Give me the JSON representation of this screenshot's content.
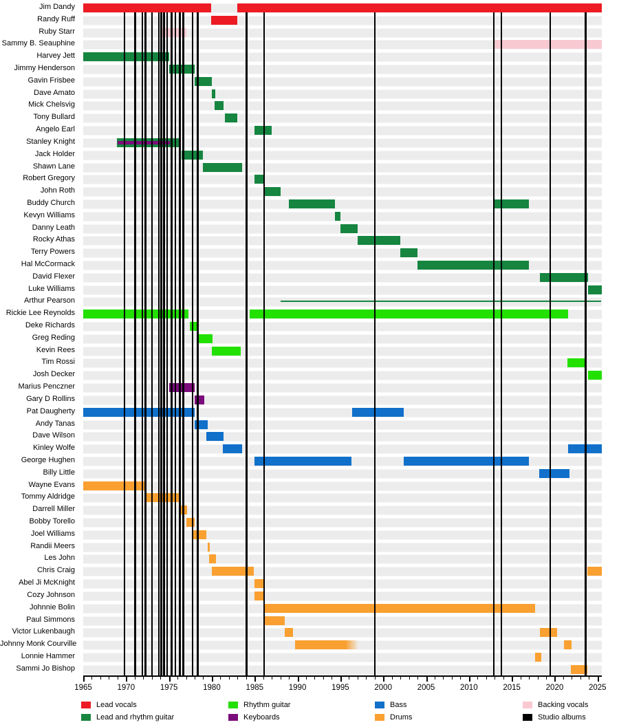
{
  "chart_data": {
    "type": "timeline",
    "title": "",
    "x_axis": {
      "min": 1965,
      "max": 2025.5,
      "major_ticks": [
        1965,
        1970,
        1975,
        1980,
        1985,
        1990,
        1995,
        2000,
        2005,
        2010,
        2015,
        2020,
        2025
      ],
      "minor_tick_interval": 1
    },
    "colors": {
      "lead_vocals": "#ed1c24",
      "lead_rhythm_guitar": "#168540",
      "rhythm_guitar": "#22e000",
      "keyboards": "#7b0c7b",
      "bass": "#1070ca",
      "drums": "#f9a031",
      "backing_vocals": "#f9c9d2",
      "albums": "#000000"
    },
    "album_lines": [
      1969.8,
      1971.05,
      1971.9,
      1972.25,
      1973.0,
      1973.8,
      1974.1,
      1974.4,
      1974.75,
      1975.3,
      1975.75,
      1976.25,
      1976.65,
      1977.75,
      1978.35,
      1984.05,
      1986.1,
      1999.0,
      2012.9,
      2013.75,
      2019.45,
      2023.6
    ],
    "members": [
      {
        "name": "Jim Dandy",
        "role": "lead_vocals",
        "bars": [
          {
            "s": 1965,
            "e": 1979.9
          },
          {
            "s": 1983,
            "e": 2025.5
          }
        ]
      },
      {
        "name": "Randy Ruff",
        "role": "lead_vocals",
        "bars": [
          {
            "s": 1979.9,
            "e": 1983
          }
        ]
      },
      {
        "name": "Ruby Starr",
        "role": "backing_vocals",
        "bars": [
          {
            "s": 1974,
            "e": 1977
          }
        ]
      },
      {
        "name": "Sammy B. Seauphine",
        "role": "backing_vocals",
        "bars": [
          {
            "s": 2013,
            "e": 2025.5
          }
        ]
      },
      {
        "name": "Harvey Jett",
        "role": "lead_rhythm_guitar",
        "bars": [
          {
            "s": 1965,
            "e": 1975
          }
        ]
      },
      {
        "name": "Jimmy Henderson",
        "role": "lead_rhythm_guitar",
        "bars": [
          {
            "s": 1975,
            "e": 1978
          }
        ]
      },
      {
        "name": "Gavin Frisbee",
        "role": "lead_rhythm_guitar",
        "bars": [
          {
            "s": 1978,
            "e": 1980
          }
        ]
      },
      {
        "name": "Dave Amato",
        "role": "lead_rhythm_guitar",
        "bars": [
          {
            "s": 1980,
            "e": 1980.4
          }
        ]
      },
      {
        "name": "Mick Chelsvig",
        "role": "lead_rhythm_guitar",
        "bars": [
          {
            "s": 1980.3,
            "e": 1981.4
          }
        ]
      },
      {
        "name": "Tony Bullard",
        "role": "lead_rhythm_guitar",
        "bars": [
          {
            "s": 1981.5,
            "e": 1983
          }
        ]
      },
      {
        "name": "Angelo Earl",
        "role": "lead_rhythm_guitar",
        "bars": [
          {
            "s": 1985,
            "e": 1987
          }
        ]
      },
      {
        "name": "Stanley Knight",
        "role": "lead_rhythm_guitar",
        "bars": [
          {
            "s": 1968.9,
            "e": 1976.4
          },
          {
            "s": 1969,
            "e": 1975.1,
            "role": "keyboards",
            "overlay": true
          }
        ]
      },
      {
        "name": "Jack Holder",
        "role": "lead_rhythm_guitar",
        "bars": [
          {
            "s": 1976.5,
            "e": 1979
          }
        ]
      },
      {
        "name": "Shawn Lane",
        "role": "lead_rhythm_guitar",
        "bars": [
          {
            "s": 1979,
            "e": 1983.5
          }
        ]
      },
      {
        "name": "Robert Gregory",
        "role": "lead_rhythm_guitar",
        "bars": [
          {
            "s": 1985,
            "e": 1986
          }
        ]
      },
      {
        "name": "John Roth",
        "role": "lead_rhythm_guitar",
        "bars": [
          {
            "s": 1986,
            "e": 1988
          }
        ]
      },
      {
        "name": "Buddy Church",
        "role": "lead_rhythm_guitar",
        "bars": [
          {
            "s": 1989,
            "e": 1994.4
          },
          {
            "s": 2013,
            "e": 2017
          }
        ]
      },
      {
        "name": "Kevyn Williams",
        "role": "lead_rhythm_guitar",
        "bars": [
          {
            "s": 1994.4,
            "e": 1995
          }
        ]
      },
      {
        "name": "Danny Leath",
        "role": "lead_rhythm_guitar",
        "bars": [
          {
            "s": 1995,
            "e": 1997
          }
        ]
      },
      {
        "name": "Rocky Athas",
        "role": "lead_rhythm_guitar",
        "bars": [
          {
            "s": 1997,
            "e": 2002
          }
        ]
      },
      {
        "name": "Terry Powers",
        "role": "lead_rhythm_guitar",
        "bars": [
          {
            "s": 2002,
            "e": 2004
          }
        ]
      },
      {
        "name": "Hal McCormack",
        "role": "lead_rhythm_guitar",
        "bars": [
          {
            "s": 2004,
            "e": 2017
          }
        ]
      },
      {
        "name": "David Flexer",
        "role": "lead_rhythm_guitar",
        "bars": [
          {
            "s": 2018.3,
            "e": 2023.9
          }
        ]
      },
      {
        "name": "Luke Williams",
        "role": "lead_rhythm_guitar",
        "bars": [
          {
            "s": 2023.9,
            "e": 2025.5
          }
        ]
      },
      {
        "name": "Arthur Pearson",
        "role": "lead_rhythm_guitar",
        "bars": [
          {
            "s": 1988,
            "e": 2025.4,
            "thin": true
          }
        ]
      },
      {
        "name": "Rickie Lee Reynolds",
        "role": "rhythm_guitar",
        "bars": [
          {
            "s": 1965,
            "e": 1977.3
          },
          {
            "s": 1984.4,
            "e": 2021.6
          }
        ]
      },
      {
        "name": "Deke Richards",
        "role": "rhythm_guitar",
        "bars": [
          {
            "s": 1977.4,
            "e": 1978.5
          }
        ]
      },
      {
        "name": "Greg Reding",
        "role": "rhythm_guitar",
        "bars": [
          {
            "s": 1978.4,
            "e": 1980.1
          }
        ]
      },
      {
        "name": "Kevin Rees",
        "role": "rhythm_guitar",
        "bars": [
          {
            "s": 1980,
            "e": 1983.4
          }
        ]
      },
      {
        "name": "Tim Rossi",
        "role": "rhythm_guitar",
        "bars": [
          {
            "s": 2021.5,
            "e": 2023.6
          }
        ]
      },
      {
        "name": "Josh Decker",
        "role": "rhythm_guitar",
        "bars": [
          {
            "s": 2023.9,
            "e": 2025.5
          }
        ]
      },
      {
        "name": "Marius Penczner",
        "role": "keyboards",
        "bars": [
          {
            "s": 1975,
            "e": 1978
          }
        ]
      },
      {
        "name": "Gary D Rollins",
        "role": "keyboards",
        "bars": [
          {
            "s": 1978,
            "e": 1979.1
          }
        ]
      },
      {
        "name": "Pat Daugherty",
        "role": "bass",
        "bars": [
          {
            "s": 1965,
            "e": 1978
          },
          {
            "s": 1996.4,
            "e": 2002.4
          }
        ]
      },
      {
        "name": "Andy Tanas",
        "role": "bass",
        "bars": [
          {
            "s": 1978,
            "e": 1979.5
          }
        ]
      },
      {
        "name": "Dave Wilson",
        "role": "bass",
        "bars": [
          {
            "s": 1979.4,
            "e": 1981.4
          }
        ]
      },
      {
        "name": "Kinley Wolfe",
        "role": "bass",
        "bars": [
          {
            "s": 1981.3,
            "e": 1983.5
          },
          {
            "s": 2021.6,
            "e": 2025.5
          }
        ]
      },
      {
        "name": "George Hughen",
        "role": "bass",
        "bars": [
          {
            "s": 1985,
            "e": 1996.3
          },
          {
            "s": 2002.4,
            "e": 2017
          }
        ]
      },
      {
        "name": "Billy Little",
        "role": "bass",
        "bars": [
          {
            "s": 2018.2,
            "e": 2021.7
          }
        ]
      },
      {
        "name": "Wayne Evans",
        "role": "drums",
        "bars": [
          {
            "s": 1965,
            "e": 1972.4
          }
        ]
      },
      {
        "name": "Tommy Aldridge",
        "role": "drums",
        "bars": [
          {
            "s": 1972.4,
            "e": 1976.3
          }
        ]
      },
      {
        "name": "Darrell Miller",
        "role": "drums",
        "bars": [
          {
            "s": 1976.2,
            "e": 1977.1
          }
        ]
      },
      {
        "name": "Bobby Torello",
        "role": "drums",
        "bars": [
          {
            "s": 1977,
            "e": 1978
          }
        ]
      },
      {
        "name": "Joel Williams",
        "role": "drums",
        "bars": [
          {
            "s": 1977.8,
            "e": 1979.4
          }
        ]
      },
      {
        "name": "Randii Meers",
        "role": "drums",
        "bars": [
          {
            "s": 1979.5,
            "e": 1979.75
          }
        ]
      },
      {
        "name": "Les John",
        "role": "drums",
        "bars": [
          {
            "s": 1979.7,
            "e": 1980.45
          }
        ]
      },
      {
        "name": "Chris Craig",
        "role": "drums",
        "bars": [
          {
            "s": 1980,
            "e": 1984.9
          },
          {
            "s": 2023.8,
            "e": 2025.5
          }
        ]
      },
      {
        "name": "Abel Ji McKnight",
        "role": "drums",
        "bars": [
          {
            "s": 1985,
            "e": 1986
          }
        ]
      },
      {
        "name": "Cozy Johnson",
        "role": "drums",
        "bars": [
          {
            "s": 1985,
            "e": 1986.1
          }
        ]
      },
      {
        "name": "Johnnie Bolin",
        "role": "drums",
        "bars": [
          {
            "s": 1986,
            "e": 2017.7
          }
        ]
      },
      {
        "name": "Paul Simmons",
        "role": "drums",
        "bars": [
          {
            "s": 1986.1,
            "e": 1988.5
          }
        ]
      },
      {
        "name": "Victor Lukenbaugh",
        "role": "drums",
        "bars": [
          {
            "s": 1988.5,
            "e": 1989.5
          },
          {
            "s": 2018.3,
            "e": 2020.3
          }
        ]
      },
      {
        "name": "Johnny Monk Courville",
        "role": "drums",
        "bars": [
          {
            "s": 1989.7,
            "e": 1997.1,
            "fade": true
          },
          {
            "s": 2021.1,
            "e": 2022
          }
        ]
      },
      {
        "name": "Lonnie Hammer",
        "role": "drums",
        "bars": [
          {
            "s": 2017.7,
            "e": 2018.4
          }
        ]
      },
      {
        "name": "Sammi Jo Bishop",
        "role": "drums",
        "bars": [
          {
            "s": 2021.9,
            "e": 2023.8
          }
        ]
      }
    ],
    "legend": [
      {
        "label": "Lead vocals",
        "role": "lead_vocals",
        "col": 0,
        "row": 0
      },
      {
        "label": "Lead and rhythm guitar",
        "role": "lead_rhythm_guitar",
        "col": 0,
        "row": 1
      },
      {
        "label": "Rhythm guitar",
        "role": "rhythm_guitar",
        "col": 1,
        "row": 0
      },
      {
        "label": "Keyboards",
        "role": "keyboards",
        "col": 1,
        "row": 1
      },
      {
        "label": "Bass",
        "role": "bass",
        "col": 2,
        "row": 0
      },
      {
        "label": "Drums",
        "role": "drums",
        "col": 2,
        "row": 1
      },
      {
        "label": "Backing vocals",
        "role": "backing_vocals",
        "col": 3,
        "row": 0
      },
      {
        "label": "Studio albums",
        "role": "albums",
        "col": 3,
        "row": 1
      }
    ]
  }
}
